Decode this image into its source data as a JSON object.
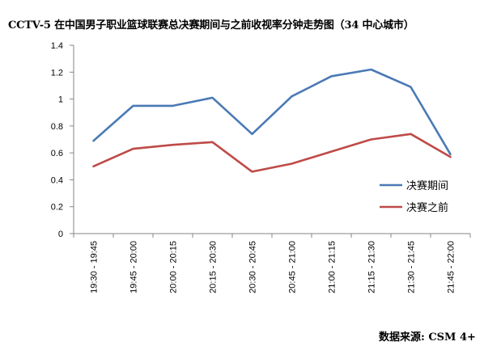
{
  "page": {
    "title": "CCTV-5 在中国男子职业篮球联赛总决赛期间与之前收视率分钟走势图（34 中心城市）",
    "source": "数据来源: CSM 4+"
  },
  "colors": {
    "series_1": "#4a7ab5",
    "series_2": "#be4b48",
    "axis": "#868686"
  },
  "chart_data": {
    "type": "line",
    "title": "CCTV-5 在中国男子职业篮球联赛总决赛期间与之前收视率分钟走势图（34 中心城市）",
    "xlabel": "",
    "ylabel": "",
    "categories": [
      "19:30 - 19:45",
      "19:45 - 20:00",
      "20:00 - 20:15",
      "20:15 - 20:30",
      "20:30 - 20:45",
      "20:45 - 21:00",
      "21:00 - 21:15",
      "21:15 - 21:30",
      "21:30 - 21:45",
      "21:45 - 22:00"
    ],
    "ylim": [
      0,
      1.4
    ],
    "yticks": [
      "0",
      "0.2",
      "0.4",
      "0.6",
      "0.8",
      "1",
      "1.2",
      "1.4"
    ],
    "grid": false,
    "legend_position": "right",
    "series": [
      {
        "name": "决赛期间",
        "values": [
          0.69,
          0.95,
          0.95,
          1.01,
          0.74,
          1.02,
          1.17,
          1.22,
          1.09,
          0.59
        ]
      },
      {
        "name": "决赛之前",
        "values": [
          0.5,
          0.63,
          0.66,
          0.68,
          0.46,
          0.52,
          0.61,
          0.7,
          0.74,
          0.57
        ]
      }
    ]
  }
}
